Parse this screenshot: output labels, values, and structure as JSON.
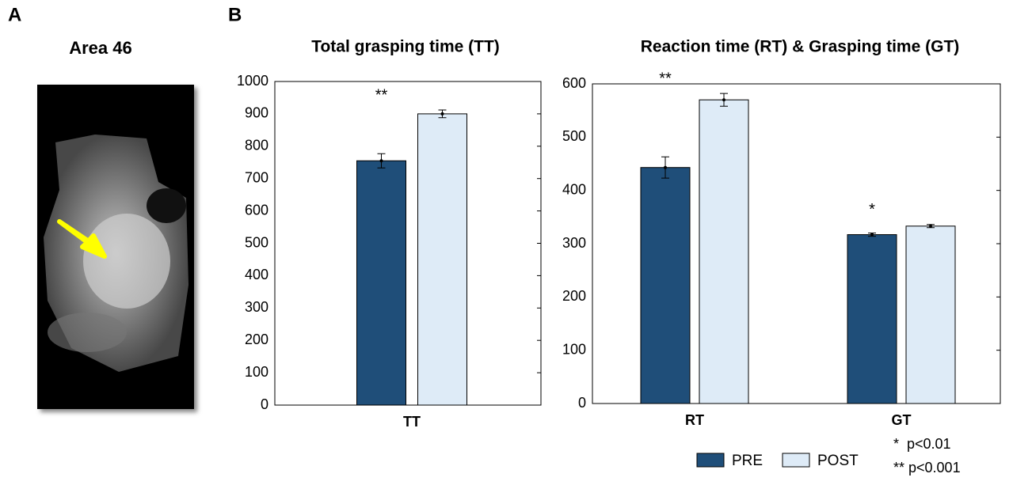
{
  "panel_labels": [
    "A",
    "B"
  ],
  "image_title": "Area 46",
  "chart_data": [
    {
      "type": "bar",
      "title": "Total grasping time (TT)",
      "categories": [
        "TT"
      ],
      "significance": [
        "**"
      ],
      "series": [
        {
          "color": "#1f4e79",
          "values": [
            755
          ],
          "errors": [
            22
          ]
        },
        {
          "color": "#deebf7",
          "values": [
            900
          ],
          "errors": [
            12
          ]
        }
      ],
      "ylim": [
        0,
        1000
      ],
      "yticks": [
        0,
        100,
        200,
        300,
        400,
        500,
        600,
        700,
        800,
        900,
        1000
      ],
      "grid": false
    },
    {
      "type": "bar",
      "title": "Reaction time (RT) & Grasping time (GT)",
      "categories": [
        "RT",
        "GT"
      ],
      "significance": [
        "**",
        "*"
      ],
      "series": [
        {
          "name": "PRE",
          "color": "#1f4e79",
          "values": [
            443,
            317
          ],
          "errors": [
            20,
            3
          ]
        },
        {
          "name": "POST",
          "color": "#deebf7",
          "values": [
            570,
            333
          ],
          "errors": [
            12,
            3
          ]
        }
      ],
      "ylim": [
        0,
        600
      ],
      "yticks": [
        0,
        100,
        200,
        300,
        400,
        500,
        600
      ],
      "grid": false
    }
  ],
  "significance_notes": [
    "*  p<0.01",
    "** p<0.001"
  ]
}
